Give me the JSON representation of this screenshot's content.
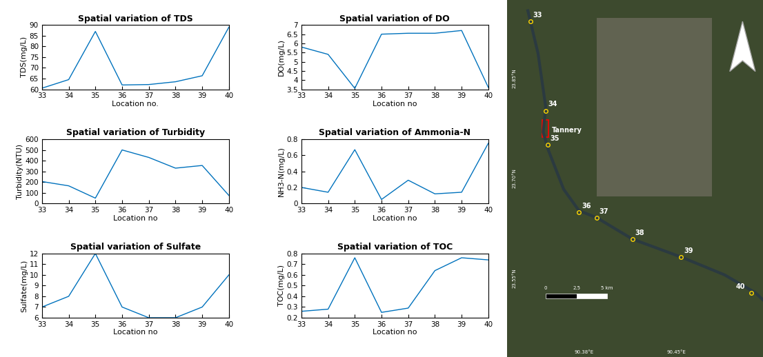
{
  "chart_data": [
    {
      "type": "line",
      "title": "Spatial variation of TDS",
      "x_label": "Location no.",
      "y_label": "TDS(mg/L)",
      "x": [
        33,
        34,
        35,
        36,
        37,
        38,
        39,
        40
      ],
      "values": [
        60.5,
        64.5,
        87,
        62,
        62.2,
        63.5,
        66.3,
        89
      ],
      "color": "#0072bd",
      "xlim": [
        33,
        40
      ],
      "xticks": [
        33,
        34,
        35,
        36,
        37,
        38,
        39,
        40
      ],
      "ylim": [
        60,
        90
      ],
      "yticks": [
        60,
        65,
        70,
        75,
        80,
        85,
        90
      ]
    },
    {
      "type": "line",
      "title": "Spatial variation of DO",
      "x_label": "Location no",
      "y_label": "DO(mg/L)",
      "x": [
        33,
        34,
        35,
        36,
        37,
        38,
        39,
        40
      ],
      "values": [
        5.8,
        5.4,
        3.55,
        6.5,
        6.55,
        6.55,
        6.7,
        3.6
      ],
      "color": "#0072bd",
      "xlim": [
        33,
        40
      ],
      "xticks": [
        33,
        34,
        35,
        36,
        37,
        38,
        39,
        40
      ],
      "ylim": [
        3.5,
        7
      ],
      "yticks": [
        3.5,
        4,
        4.5,
        5,
        5.5,
        6,
        6.5,
        7
      ]
    },
    {
      "type": "line",
      "title": "Spatial variation of Turbidity",
      "x_label": "Location no",
      "y_label": "Turbidity(NTU)",
      "x": [
        33,
        34,
        35,
        36,
        37,
        38,
        39,
        40
      ],
      "values": [
        205,
        165,
        50,
        500,
        430,
        330,
        355,
        75
      ],
      "color": "#0072bd",
      "xlim": [
        33,
        40
      ],
      "xticks": [
        33,
        34,
        35,
        36,
        37,
        38,
        39,
        40
      ],
      "ylim": [
        0,
        600
      ],
      "yticks": [
        0,
        100,
        200,
        300,
        400,
        500,
        600
      ]
    },
    {
      "type": "line",
      "title": "Spatial variation of Ammonia-N",
      "x_label": "Location no",
      "y_label": "NH3-N(mg/L)",
      "x": [
        33,
        34,
        35,
        36,
        37,
        38,
        39,
        40
      ],
      "values": [
        0.2,
        0.14,
        0.67,
        0.05,
        0.29,
        0.12,
        0.14,
        0.75
      ],
      "color": "#0072bd",
      "xlim": [
        33,
        40
      ],
      "xticks": [
        33,
        34,
        35,
        36,
        37,
        38,
        39,
        40
      ],
      "ylim": [
        0,
        0.8
      ],
      "yticks": [
        0,
        0.2,
        0.4,
        0.6,
        0.8
      ]
    },
    {
      "type": "line",
      "title": "Spatial variation of Sulfate",
      "x_label": "Location no",
      "y_label": "Sulfate(mg/L)",
      "x": [
        33,
        34,
        35,
        36,
        37,
        38,
        39,
        40
      ],
      "values": [
        7,
        8,
        12,
        7,
        6,
        6,
        7,
        10
      ],
      "color": "#0072bd",
      "xlim": [
        33,
        40
      ],
      "xticks": [
        33,
        34,
        35,
        36,
        37,
        38,
        39,
        40
      ],
      "ylim": [
        6,
        12
      ],
      "yticks": [
        6,
        7,
        8,
        9,
        10,
        11,
        12
      ]
    },
    {
      "type": "line",
      "title": "Spatial variation of TOC",
      "x_label": "Location no",
      "y_label": "TOC(mg/L)",
      "x": [
        33,
        34,
        35,
        36,
        37,
        38,
        39,
        40
      ],
      "values": [
        0.26,
        0.28,
        0.76,
        0.25,
        0.29,
        0.64,
        0.76,
        0.74
      ],
      "color": "#0072bd",
      "xlim": [
        33,
        40
      ],
      "xticks": [
        33,
        34,
        35,
        36,
        37,
        38,
        39,
        40
      ],
      "ylim": [
        0.2,
        0.8
      ],
      "yticks": [
        0.2,
        0.3,
        0.4,
        0.5,
        0.6,
        0.7,
        0.8
      ]
    }
  ],
  "map": {
    "sites": [
      "33",
      "34",
      "35",
      "36",
      "37",
      "38",
      "39",
      "40"
    ],
    "landmark": "Tannery",
    "scale_labels": [
      "0",
      "2.5",
      "5 km"
    ],
    "lat_labels": [
      "23.85°N",
      "23.70°N",
      "23.55°N"
    ],
    "lon_labels": [
      "90.38°E",
      "90.45°E"
    ]
  }
}
